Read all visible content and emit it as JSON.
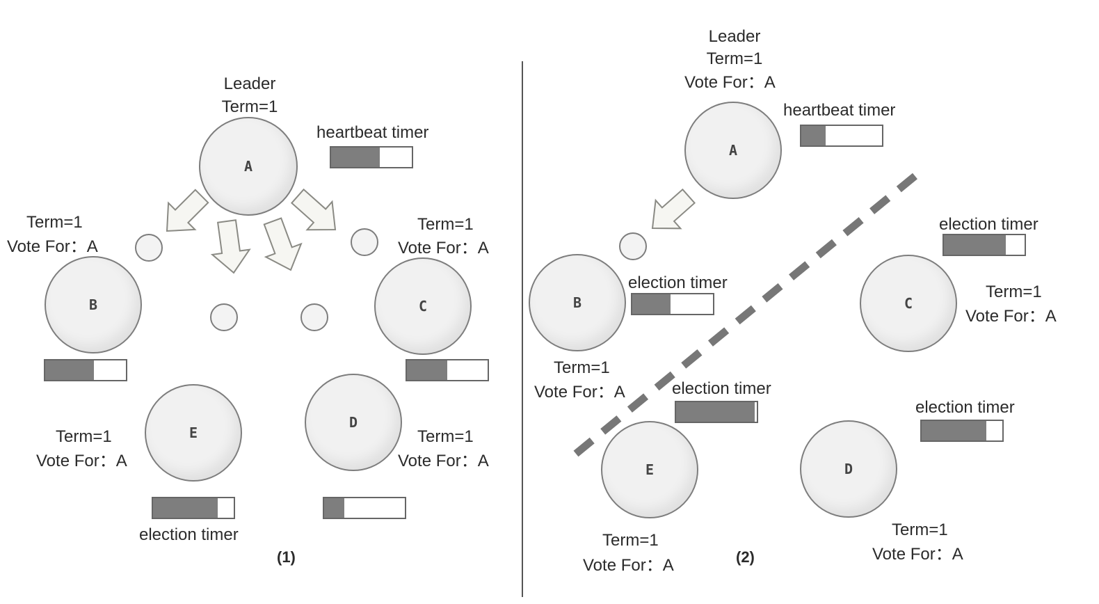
{
  "panel1": {
    "caption": "(1)",
    "nodes": {
      "A": "A",
      "B": "B",
      "C": "C",
      "D": "D",
      "E": "E"
    },
    "leader_label": "Leader",
    "leader_term": "Term=1",
    "heartbeat_label": "heartbeat timer",
    "b_term": "Term=1",
    "b_vote": "Vote For：A",
    "c_term": "Term=1",
    "c_vote": "Vote For：A",
    "e_term": "Term=1",
    "e_vote": "Vote For：A",
    "d_term": "Term=1",
    "d_vote": "Vote For：A",
    "election_label": "election timer",
    "timer_fill": {
      "A": 0.6,
      "B": 0.6,
      "C": 0.5,
      "E": 0.8,
      "D": 0.25
    }
  },
  "panel2": {
    "caption": "(2)",
    "nodes": {
      "A": "A",
      "B": "B",
      "C": "C",
      "D": "D",
      "E": "E"
    },
    "leader_label": "Leader",
    "leader_term": "Term=1",
    "leader_vote": "Vote For：A",
    "heartbeat_label": "heartbeat timer",
    "b_election_label": "election timer",
    "b_term": "Term=1",
    "b_vote": "Vote For：A",
    "e_election_label": "election timer",
    "e_term": "Term=1",
    "e_vote": "Vote For：A",
    "c_election_label": "election timer",
    "c_term": "Term=1",
    "c_vote": "Vote For：A",
    "d_election_label": "election timer",
    "d_term": "Term=1",
    "d_vote": "Vote For：A",
    "timer_fill": {
      "A": 0.3,
      "B": 0.47,
      "C": 0.77,
      "E": 0.97,
      "D": 0.8
    }
  },
  "colors": {
    "fill": "#7e7e7e",
    "partition": "#777777",
    "arrow": "#f6f6f2"
  }
}
